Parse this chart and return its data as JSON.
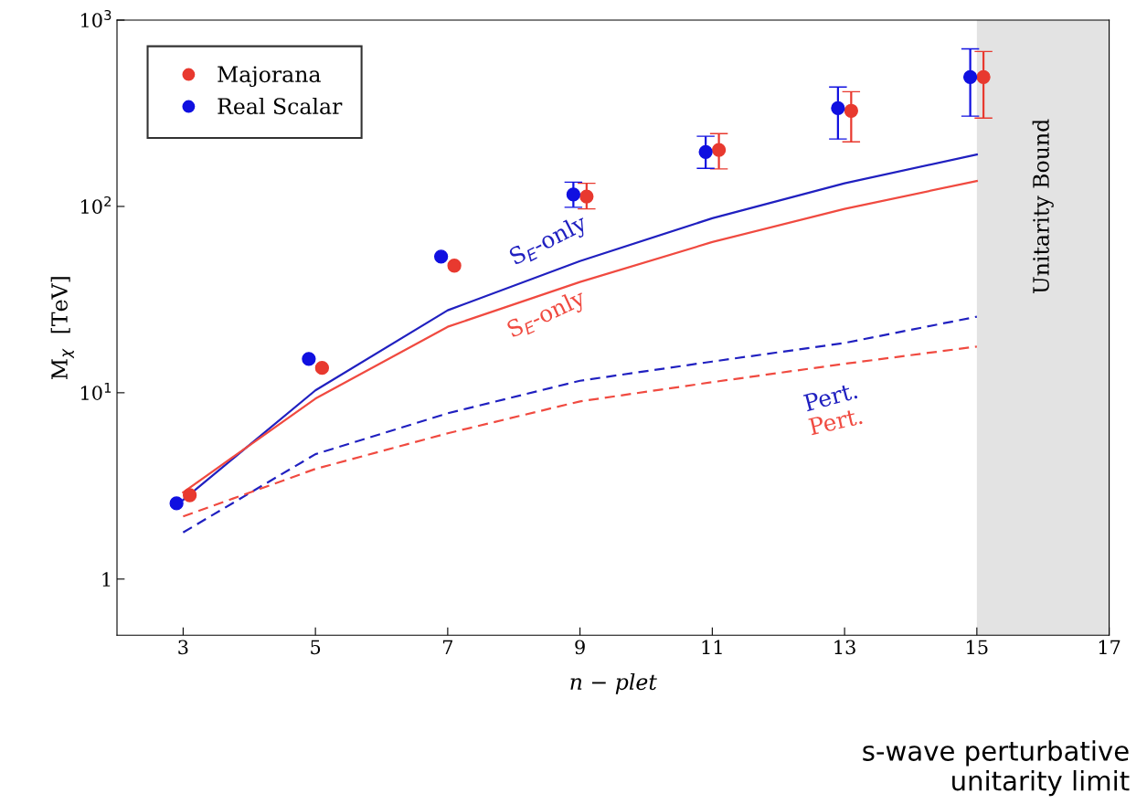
{
  "chart_data": {
    "type": "scatter",
    "xlabel": "n − plet",
    "ylabel": "M$_{χ}$  [TeV]",
    "log": "y",
    "xlim": [
      2,
      17
    ],
    "ylim": [
      0.5,
      1000
    ],
    "xticks": [
      3,
      5,
      7,
      9,
      11,
      13,
      15,
      17
    ],
    "yticks": [
      1,
      {
        "value": 10,
        "label": "10$^{1}$"
      },
      {
        "value": 100,
        "label": "10$^{2}$"
      },
      {
        "value": 1000,
        "label": "10$^{3}$"
      }
    ],
    "grid": false,
    "legend": "top left",
    "marker": "circle",
    "series": [
      {
        "name": "Majorana",
        "color": "#e8392f",
        "x": [
          3.1,
          5.1,
          7.1,
          9.1,
          11.1,
          13.1,
          15.1
        ],
        "values": [
          2.82,
          13.6,
          48.1,
          113,
          201,
          326,
          495
        ],
        "errors": [
          null,
          null,
          null,
          [
            97,
            133
          ],
          [
            159,
            246
          ],
          [
            222,
            413
          ],
          [
            298,
            678
          ]
        ]
      },
      {
        "name": "Real Scalar",
        "color": "#1010e0",
        "x": [
          2.9,
          4.9,
          6.9,
          8.9,
          10.9,
          12.9,
          14.9
        ],
        "values": [
          2.55,
          15.2,
          53.8,
          116,
          196,
          337,
          495
        ],
        "errors": [
          null,
          null,
          null,
          [
            99,
            135
          ],
          [
            160,
            238
          ],
          [
            230,
            437
          ],
          [
            305,
            701
          ]
        ]
      },
      {
        "type": "line",
        "color": "#2020c0",
        "line_style": "solid",
        "marker": "none",
        "x": [
          3,
          5,
          7,
          9,
          11,
          13,
          15
        ],
        "values": [
          2.66,
          10.3,
          27.7,
          50.9,
          86.4,
          133,
          190
        ]
      },
      {
        "type": "line",
        "color": "#f04a40",
        "line_style": "solid",
        "marker": "none",
        "x": [
          3,
          5,
          7,
          9,
          11,
          13,
          15
        ],
        "values": [
          2.92,
          9.3,
          22.6,
          39.3,
          64.4,
          97,
          137
        ]
      },
      {
        "type": "line",
        "color": "#2020c0",
        "line_style": "dashed",
        "marker": "none",
        "x": [
          3,
          5,
          7,
          9,
          11,
          13,
          15
        ],
        "values": [
          1.78,
          4.68,
          7.76,
          11.6,
          14.7,
          18.5,
          25.6
        ]
      },
      {
        "type": "line",
        "color": "#f04a40",
        "line_style": "dashed",
        "marker": "none",
        "x": [
          3,
          5,
          7,
          9,
          11,
          13,
          15
        ],
        "values": [
          2.17,
          3.9,
          6.06,
          8.99,
          11.4,
          14.3,
          17.7
        ]
      }
    ],
    "bands": [
      {
        "axis": "x",
        "from": 15,
        "to": 17,
        "label": "Unitarity Bound",
        "color": "#e3e3e3"
      }
    ],
    "annotations": [
      "S$_{E}$-only",
      "S$_{E}$-only",
      "Pert.",
      "Pert.",
      "s-wave perturbative\nunitarity limit"
    ]
  }
}
